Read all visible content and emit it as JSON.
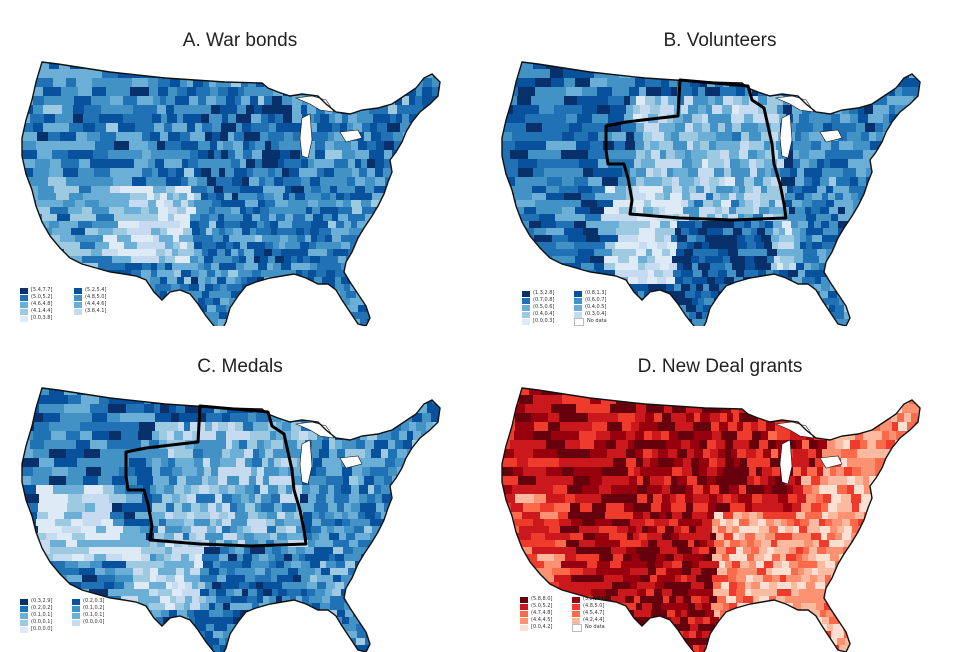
{
  "palettes": {
    "blue": [
      "#08306b",
      "#08519c",
      "#2171b5",
      "#4292c6",
      "#6baed6",
      "#9ecae1",
      "#c6dbef",
      "#deebf7"
    ],
    "red": [
      "#67000d",
      "#99000d",
      "#cb181d",
      "#ef3b2c",
      "#fb6a4a",
      "#fc9272",
      "#fcbba1",
      "#fee0d2"
    ]
  },
  "panels": [
    {
      "id": "war-bonds",
      "title": "A. War bonds",
      "palette": "blue",
      "has_region_outline": false,
      "legend": {
        "left": [
          {
            "label": "[5.4,7.7]",
            "level": 0
          },
          {
            "label": "(5.0,5.2]",
            "level": 2
          },
          {
            "label": "(4.6,4.8]",
            "level": 4
          },
          {
            "label": "(4.1,4.4]",
            "level": 5
          },
          {
            "label": "[0.0,3.8]",
            "level": 7
          }
        ],
        "right": [
          {
            "label": "(5.2,5.4]",
            "level": 1
          },
          {
            "label": "(4.8,5.0]",
            "level": 3
          },
          {
            "label": "(4.4,4.6]",
            "level": 4
          },
          {
            "label": "(3.8,4.1]",
            "level": 6
          }
        ]
      }
    },
    {
      "id": "volunteers",
      "title": "B. Volunteers",
      "palette": "blue",
      "has_region_outline": true,
      "legend": {
        "left": [
          {
            "label": "(1.3,2.8]",
            "level": 0
          },
          {
            "label": "(0.7,0.8]",
            "level": 2
          },
          {
            "label": "(0.5,0.6]",
            "level": 4
          },
          {
            "label": "(0.4,0.4]",
            "level": 5
          },
          {
            "label": "[0.0,0.3]",
            "level": 7
          }
        ],
        "right": [
          {
            "label": "(0.8,1.3]",
            "level": 1
          },
          {
            "label": "(0.6,0.7]",
            "level": 3
          },
          {
            "label": "(0.4,0.5]",
            "level": 4
          },
          {
            "label": "(0.3,0.4]",
            "level": 6
          },
          {
            "label": "No data",
            "level": -1
          }
        ]
      }
    },
    {
      "id": "medals",
      "title": "C. Medals",
      "palette": "blue",
      "has_region_outline": true,
      "legend": {
        "left": [
          {
            "label": "(0.3,2.9]",
            "level": 0
          },
          {
            "label": "(0.2,0.2]",
            "level": 2
          },
          {
            "label": "(0.1,0.1]",
            "level": 4
          },
          {
            "label": "(0.0,0.1]",
            "level": 5
          },
          {
            "label": "[0.0,0.0]",
            "level": 7
          }
        ],
        "right": [
          {
            "label": "(0.2,0.3]",
            "level": 1
          },
          {
            "label": "(0.1,0.2]",
            "level": 3
          },
          {
            "label": "(0.1,0.1]",
            "level": 4
          },
          {
            "label": "(0.0,0.0]",
            "level": 6
          }
        ]
      }
    },
    {
      "id": "new-deal-grants",
      "title": "D. New Deal grants",
      "palette": "red",
      "has_region_outline": false,
      "legend": {
        "left": [
          {
            "label": "(5.8,8.0]",
            "level": 0
          },
          {
            "label": "(5.0,5.2]",
            "level": 2
          },
          {
            "label": "(4.7,4.8]",
            "level": 4
          },
          {
            "label": "(4.4,4.5]",
            "level": 5
          },
          {
            "label": "[0.0,4.2]",
            "level": 7
          }
        ],
        "right": [
          {
            "label": "(5.2,5.8]",
            "level": 1
          },
          {
            "label": "(4.8,5.0]",
            "level": 3
          },
          {
            "label": "(4.5,4.7]",
            "level": 4
          },
          {
            "label": "(4.2,4.4]",
            "level": 6
          },
          {
            "label": "No data",
            "level": -1
          }
        ]
      }
    }
  ]
}
